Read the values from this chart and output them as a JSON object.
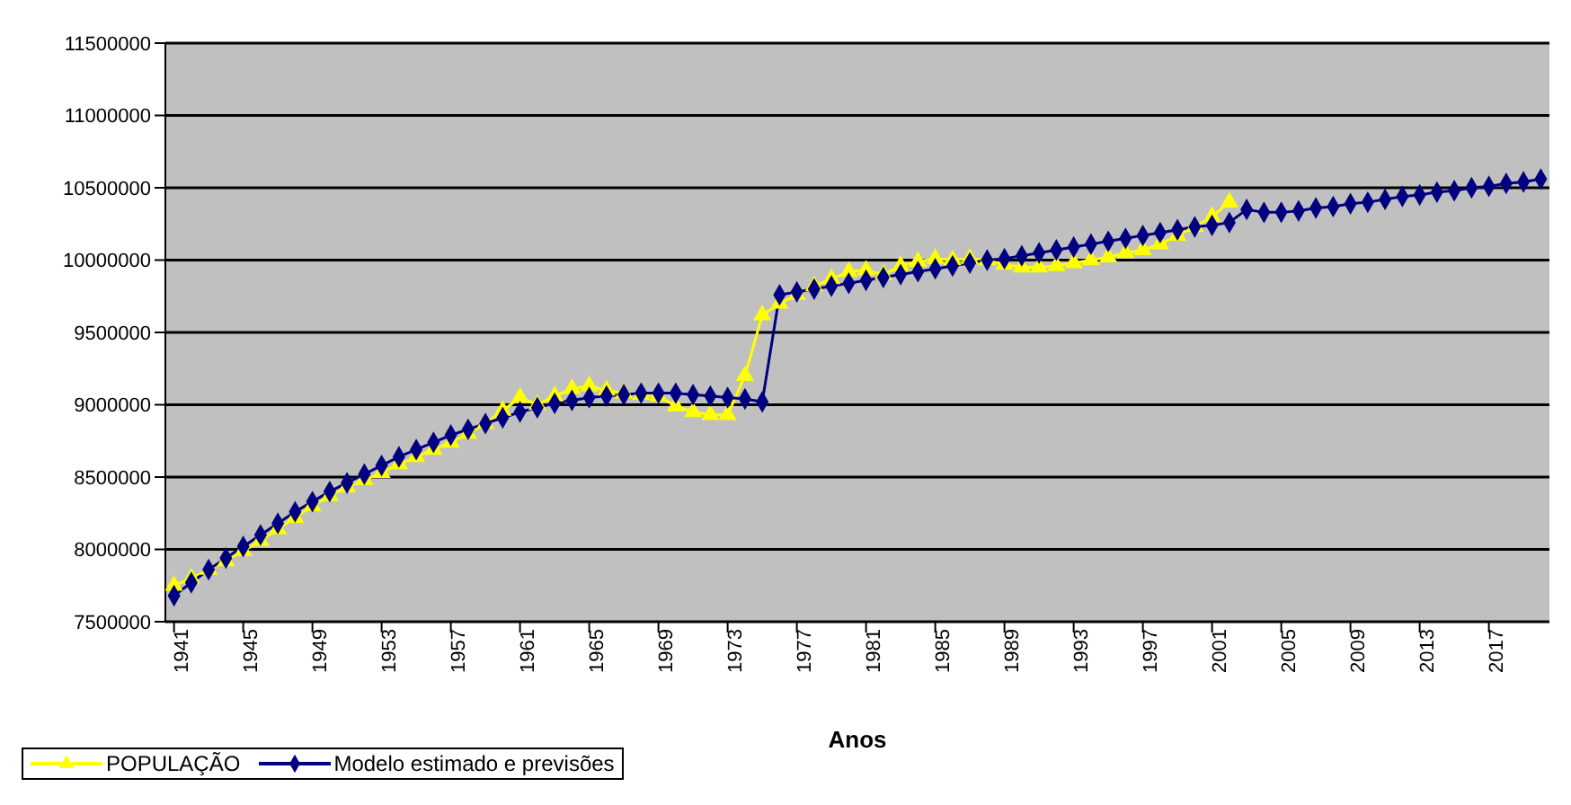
{
  "chart_data": {
    "type": "line",
    "xlabel": "Anos",
    "x": [
      1941,
      1942,
      1943,
      1944,
      1945,
      1946,
      1947,
      1948,
      1949,
      1950,
      1951,
      1952,
      1953,
      1954,
      1955,
      1956,
      1957,
      1958,
      1959,
      1960,
      1961,
      1962,
      1963,
      1964,
      1965,
      1966,
      1967,
      1968,
      1969,
      1970,
      1971,
      1972,
      1973,
      1974,
      1975,
      1976,
      1977,
      1978,
      1979,
      1980,
      1981,
      1982,
      1983,
      1984,
      1985,
      1986,
      1987,
      1988,
      1989,
      1990,
      1991,
      1992,
      1993,
      1994,
      1995,
      1996,
      1997,
      1998,
      1999,
      2000,
      2001,
      2002,
      2003,
      2004,
      2005,
      2006,
      2007,
      2008,
      2009,
      2010,
      2011,
      2012,
      2013,
      2014,
      2015,
      2016,
      2017,
      2018,
      2019,
      2020
    ],
    "series": [
      {
        "name": "POPULAÇÃO",
        "color": "#ffff00",
        "marker": "triangle",
        "values": [
          7750000,
          7800000,
          7860000,
          7920000,
          7990000,
          8060000,
          8140000,
          8220000,
          8300000,
          8370000,
          8430000,
          8480000,
          8530000,
          8590000,
          8640000,
          8690000,
          8740000,
          8800000,
          8870000,
          8960000,
          9050000,
          9000000,
          9060000,
          9110000,
          9130000,
          9100000,
          9080000,
          9070000,
          9060000,
          8990000,
          8950000,
          8930000,
          8930000,
          9200000,
          9620000,
          9700000,
          9760000,
          9820000,
          9870000,
          9920000,
          9930000,
          9900000,
          9960000,
          9990000,
          10010000,
          10000000,
          10010000,
          10000000,
          9970000,
          9950000,
          9950000,
          9960000,
          9980000,
          10000000,
          10020000,
          10050000,
          10070000,
          10110000,
          10170000,
          10230000,
          10300000,
          10400000,
          null,
          null,
          null,
          null,
          null,
          null,
          null,
          null,
          null,
          null,
          null,
          null,
          null,
          null,
          null,
          null,
          null,
          null
        ]
      },
      {
        "name": "Modelo estimado e previsões",
        "color": "#000080",
        "marker": "diamond",
        "values": [
          7680000,
          7770000,
          7860000,
          7940000,
          8020000,
          8100000,
          8180000,
          8260000,
          8330000,
          8400000,
          8460000,
          8520000,
          8580000,
          8640000,
          8690000,
          8740000,
          8790000,
          8830000,
          8870000,
          8910000,
          8950000,
          8980000,
          9010000,
          9030000,
          9050000,
          9060000,
          9070000,
          9080000,
          9080000,
          9080000,
          9070000,
          9060000,
          9050000,
          9040000,
          9020000,
          9760000,
          9780000,
          9800000,
          9820000,
          9840000,
          9860000,
          9880000,
          9900000,
          9920000,
          9940000,
          9960000,
          9980000,
          10000000,
          10010000,
          10030000,
          10050000,
          10070000,
          10090000,
          10110000,
          10130000,
          10150000,
          10170000,
          10190000,
          10210000,
          10230000,
          10240000,
          10260000,
          10350000,
          10330000,
          10330000,
          10340000,
          10360000,
          10370000,
          10390000,
          10400000,
          10420000,
          10440000,
          10450000,
          10470000,
          10480000,
          10500000,
          10510000,
          10530000,
          10540000,
          10560000
        ]
      }
    ],
    "xlim": [
      1940.5,
      2020.5
    ],
    "xticks": [
      1941,
      1945,
      1949,
      1953,
      1957,
      1961,
      1965,
      1969,
      1973,
      1977,
      1981,
      1985,
      1989,
      1993,
      1997,
      2001,
      2005,
      2009,
      2013,
      2017
    ],
    "ylim": [
      7500000,
      11500000
    ],
    "yticks": [
      7500000,
      8000000,
      8500000,
      9000000,
      9500000,
      10000000,
      10500000,
      11000000,
      11500000
    ],
    "grid": "y",
    "legend": "bottom left",
    "line_style": "solid"
  }
}
